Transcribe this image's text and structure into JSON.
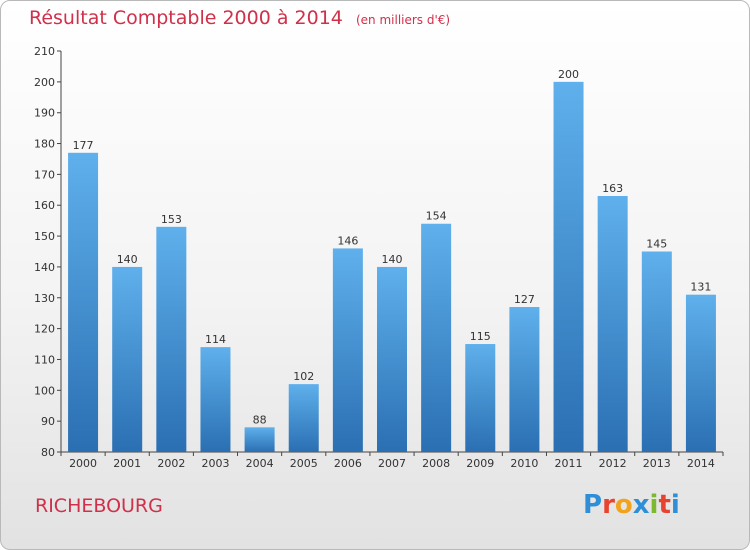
{
  "title": "Résultat Comptable 2000 à 2014",
  "unit": "(en milliers d'€)",
  "town": "RICHEBOURG",
  "logo": {
    "text": "Proxiti",
    "letters": [
      {
        "char": "P",
        "color": "#2e8fd8"
      },
      {
        "char": "r",
        "color": "#e8432f"
      },
      {
        "char": "o",
        "color": "#f2a31b"
      },
      {
        "char": "x",
        "color": "#2e8fd8"
      },
      {
        "char": "i",
        "color": "#7cb92f"
      },
      {
        "char": "t",
        "color": "#e8432f"
      },
      {
        "char": "i",
        "color": "#2e8fd8"
      }
    ]
  },
  "chart_data": {
    "type": "bar",
    "title": "Résultat Comptable 2000 à 2014",
    "subtitle": "(en milliers d'€)",
    "categories": [
      "2000",
      "2001",
      "2002",
      "2003",
      "2004",
      "2005",
      "2006",
      "2007",
      "2008",
      "2009",
      "2010",
      "2011",
      "2012",
      "2013",
      "2014"
    ],
    "values": [
      177,
      140,
      153,
      114,
      88,
      102,
      146,
      140,
      154,
      115,
      127,
      200,
      163,
      145,
      131
    ],
    "ylim": [
      80,
      210
    ],
    "yticks": [
      80,
      90,
      100,
      110,
      120,
      130,
      140,
      150,
      160,
      170,
      180,
      190,
      200,
      210
    ],
    "grid": false,
    "bar_color": "#3d8fd6",
    "bar_color_light": "#5fb0ec",
    "bar_color_dark": "#2a6fb2"
  }
}
